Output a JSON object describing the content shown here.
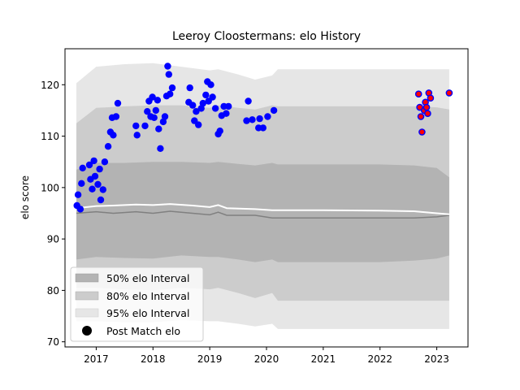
{
  "chart_data": {
    "type": "scatter",
    "title": "Leeroy Cloostermans: elo History",
    "xlabel": "",
    "ylabel": "elo score",
    "xlim": [
      2016.45,
      2023.55
    ],
    "ylim": [
      69,
      127
    ],
    "xticks": [
      2017,
      2018,
      2019,
      2020,
      2021,
      2022,
      2023
    ],
    "xtick_labels": [
      "2017",
      "2018",
      "2019",
      "2020",
      "2021",
      "2022",
      "2023"
    ],
    "yticks": [
      70,
      80,
      90,
      100,
      110,
      120
    ],
    "ytick_labels": [
      "70",
      "80",
      "90",
      "100",
      "110",
      "120"
    ],
    "grid": false,
    "legend_position": "lower-left",
    "legend": {
      "band50": "50% elo Interval",
      "band80": "80% elo Interval",
      "band95": "95% elo Interval",
      "points": "Post Match elo"
    },
    "colors": {
      "band95": "#e6e6e6",
      "band80": "#cccccc",
      "band50": "#b3b3b3",
      "median": "#808080",
      "mean": "#ffffff",
      "point": "#0000ff",
      "point_recent": "#ff0000"
    },
    "bands": {
      "x": [
        2016.65,
        2017.0,
        2017.5,
        2018.0,
        2018.5,
        2019.0,
        2019.15,
        2019.5,
        2019.8,
        2020.1,
        2020.2,
        2021.0,
        2022.0,
        2022.6,
        2023.0,
        2023.22
      ],
      "p95_low": [
        74.0,
        74.0,
        73.8,
        73.8,
        74.2,
        74.0,
        74.0,
        73.5,
        73.0,
        73.5,
        72.5,
        72.5,
        72.5,
        72.5,
        72.5,
        72.5
      ],
      "p95_high": [
        120.3,
        123.5,
        124.0,
        124.2,
        123.5,
        122.8,
        123.0,
        122.0,
        121.0,
        121.8,
        123.0,
        123.0,
        123.0,
        123.0,
        123.0,
        123.0
      ],
      "p80_low": [
        80.5,
        80.5,
        80.2,
        80.0,
        80.5,
        80.2,
        80.5,
        79.5,
        78.5,
        79.5,
        78.0,
        78.0,
        78.0,
        78.0,
        78.0,
        78.0
      ],
      "p80_high": [
        112.5,
        115.5,
        115.8,
        116.0,
        116.0,
        115.5,
        116.0,
        115.5,
        115.2,
        116.0,
        115.8,
        115.8,
        115.8,
        115.8,
        115.6,
        115.2
      ],
      "p50_low": [
        86.0,
        86.5,
        86.3,
        86.2,
        86.8,
        86.5,
        86.5,
        86.0,
        85.5,
        86.0,
        85.5,
        85.5,
        85.5,
        85.8,
        86.2,
        86.8
      ],
      "p50_high": [
        103.5,
        104.8,
        104.8,
        105.0,
        105.0,
        104.8,
        105.0,
        104.6,
        104.3,
        104.8,
        104.5,
        104.5,
        104.5,
        104.3,
        103.8,
        102.0
      ]
    },
    "median_line": {
      "x": [
        2016.65,
        2017.0,
        2017.3,
        2017.7,
        2018.0,
        2018.3,
        2018.7,
        2019.0,
        2019.15,
        2019.3,
        2019.8,
        2020.1,
        2021.0,
        2022.0,
        2022.6,
        2023.0,
        2023.22
      ],
      "y": [
        95.0,
        95.3,
        95.0,
        95.3,
        95.0,
        95.4,
        95.0,
        94.7,
        95.2,
        94.6,
        94.6,
        94.1,
        94.1,
        94.1,
        94.1,
        94.3,
        94.6
      ]
    },
    "mean_line": {
      "x": [
        2016.65,
        2017.0,
        2017.3,
        2017.7,
        2018.0,
        2018.3,
        2018.7,
        2019.0,
        2019.15,
        2019.3,
        2019.8,
        2020.1,
        2021.0,
        2022.0,
        2022.6,
        2023.0,
        2023.22
      ],
      "y": [
        96.0,
        96.4,
        96.5,
        96.7,
        96.6,
        96.8,
        96.5,
        96.2,
        96.6,
        96.0,
        95.8,
        95.6,
        95.6,
        95.5,
        95.4,
        95.0,
        94.8
      ]
    },
    "points": [
      {
        "x": 2016.66,
        "y": 96.5
      },
      {
        "x": 2016.68,
        "y": 98.6
      },
      {
        "x": 2016.72,
        "y": 95.8
      },
      {
        "x": 2016.74,
        "y": 100.8
      },
      {
        "x": 2016.76,
        "y": 103.8
      },
      {
        "x": 2016.88,
        "y": 104.4
      },
      {
        "x": 2016.9,
        "y": 101.6
      },
      {
        "x": 2016.93,
        "y": 99.7
      },
      {
        "x": 2016.96,
        "y": 105.2
      },
      {
        "x": 2016.98,
        "y": 102.2
      },
      {
        "x": 2017.03,
        "y": 100.6
      },
      {
        "x": 2017.06,
        "y": 103.6
      },
      {
        "x": 2017.08,
        "y": 97.6
      },
      {
        "x": 2017.12,
        "y": 99.6
      },
      {
        "x": 2017.15,
        "y": 105.0
      },
      {
        "x": 2017.21,
        "y": 108.0
      },
      {
        "x": 2017.25,
        "y": 110.8
      },
      {
        "x": 2017.28,
        "y": 113.6
      },
      {
        "x": 2017.3,
        "y": 110.2
      },
      {
        "x": 2017.35,
        "y": 113.8
      },
      {
        "x": 2017.38,
        "y": 116.4
      },
      {
        "x": 2017.7,
        "y": 112.0
      },
      {
        "x": 2017.72,
        "y": 110.2
      },
      {
        "x": 2017.86,
        "y": 112.0
      },
      {
        "x": 2017.9,
        "y": 114.8
      },
      {
        "x": 2017.93,
        "y": 116.8
      },
      {
        "x": 2017.96,
        "y": 113.8
      },
      {
        "x": 2017.99,
        "y": 117.6
      },
      {
        "x": 2018.02,
        "y": 113.6
      },
      {
        "x": 2018.05,
        "y": 115.0
      },
      {
        "x": 2018.08,
        "y": 117.0
      },
      {
        "x": 2018.1,
        "y": 111.4
      },
      {
        "x": 2018.13,
        "y": 107.6
      },
      {
        "x": 2018.18,
        "y": 112.8
      },
      {
        "x": 2018.21,
        "y": 113.8
      },
      {
        "x": 2018.24,
        "y": 117.8
      },
      {
        "x": 2018.26,
        "y": 123.6
      },
      {
        "x": 2018.28,
        "y": 122.0
      },
      {
        "x": 2018.3,
        "y": 118.2
      },
      {
        "x": 2018.34,
        "y": 119.4
      },
      {
        "x": 2018.63,
        "y": 116.6
      },
      {
        "x": 2018.65,
        "y": 119.4
      },
      {
        "x": 2018.7,
        "y": 116.0
      },
      {
        "x": 2018.73,
        "y": 113.0
      },
      {
        "x": 2018.76,
        "y": 114.8
      },
      {
        "x": 2018.8,
        "y": 112.2
      },
      {
        "x": 2018.85,
        "y": 115.4
      },
      {
        "x": 2018.88,
        "y": 116.4
      },
      {
        "x": 2018.93,
        "y": 118.0
      },
      {
        "x": 2018.96,
        "y": 120.6
      },
      {
        "x": 2018.98,
        "y": 116.8
      },
      {
        "x": 2019.02,
        "y": 120.0
      },
      {
        "x": 2019.05,
        "y": 117.6
      },
      {
        "x": 2019.1,
        "y": 115.4
      },
      {
        "x": 2019.15,
        "y": 110.4
      },
      {
        "x": 2019.18,
        "y": 111.0
      },
      {
        "x": 2019.21,
        "y": 114.0
      },
      {
        "x": 2019.25,
        "y": 115.8
      },
      {
        "x": 2019.29,
        "y": 114.4
      },
      {
        "x": 2019.33,
        "y": 115.8
      },
      {
        "x": 2019.65,
        "y": 113.0
      },
      {
        "x": 2019.68,
        "y": 116.8
      },
      {
        "x": 2019.75,
        "y": 113.2
      },
      {
        "x": 2019.86,
        "y": 111.6
      },
      {
        "x": 2019.88,
        "y": 113.4
      },
      {
        "x": 2019.94,
        "y": 111.6
      },
      {
        "x": 2020.02,
        "y": 113.8
      },
      {
        "x": 2020.13,
        "y": 115.0
      }
    ],
    "recent_points": [
      {
        "x": 2022.68,
        "y": 118.2
      },
      {
        "x": 2022.7,
        "y": 115.6
      },
      {
        "x": 2022.72,
        "y": 113.8
      },
      {
        "x": 2022.74,
        "y": 110.8
      },
      {
        "x": 2022.78,
        "y": 115.0
      },
      {
        "x": 2022.8,
        "y": 116.6
      },
      {
        "x": 2022.82,
        "y": 115.6
      },
      {
        "x": 2022.84,
        "y": 114.4
      },
      {
        "x": 2022.86,
        "y": 118.4
      },
      {
        "x": 2022.89,
        "y": 117.4
      },
      {
        "x": 2023.22,
        "y": 118.4
      }
    ]
  }
}
